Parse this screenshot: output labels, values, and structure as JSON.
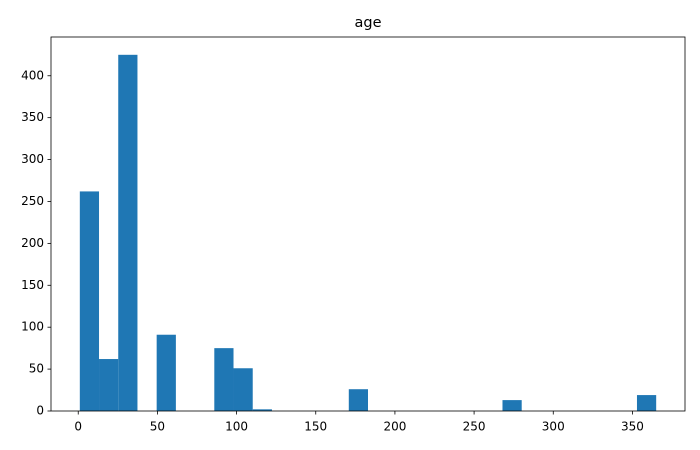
{
  "chart_data": {
    "type": "histogram",
    "title": "age",
    "bins": [
      1,
      13.133,
      25.267,
      37.4,
      49.533,
      61.667,
      73.8,
      85.933,
      98.067,
      110.2,
      122.333,
      134.467,
      146.6,
      158.733,
      170.867,
      183,
      195.133,
      207.267,
      219.4,
      231.533,
      243.667,
      255.8,
      267.933,
      280.067,
      292.2,
      304.333,
      316.467,
      328.6,
      340.733,
      352.867,
      365
    ],
    "counts": [
      262,
      62,
      425,
      0,
      91,
      0,
      0,
      75,
      51,
      2,
      0,
      0,
      0,
      0,
      26,
      0,
      0,
      0,
      0,
      0,
      0,
      0,
      13,
      0,
      0,
      0,
      0,
      0,
      0,
      19
    ],
    "color": "#1f77b4",
    "xlim": [
      -17.2,
      383.2
    ],
    "ylim": [
      0,
      446.25
    ],
    "xticks": [
      0,
      50,
      100,
      150,
      200,
      250,
      300,
      350
    ],
    "yticks": [
      0,
      50,
      100,
      150,
      200,
      250,
      300,
      350,
      400
    ],
    "grid": false
  }
}
